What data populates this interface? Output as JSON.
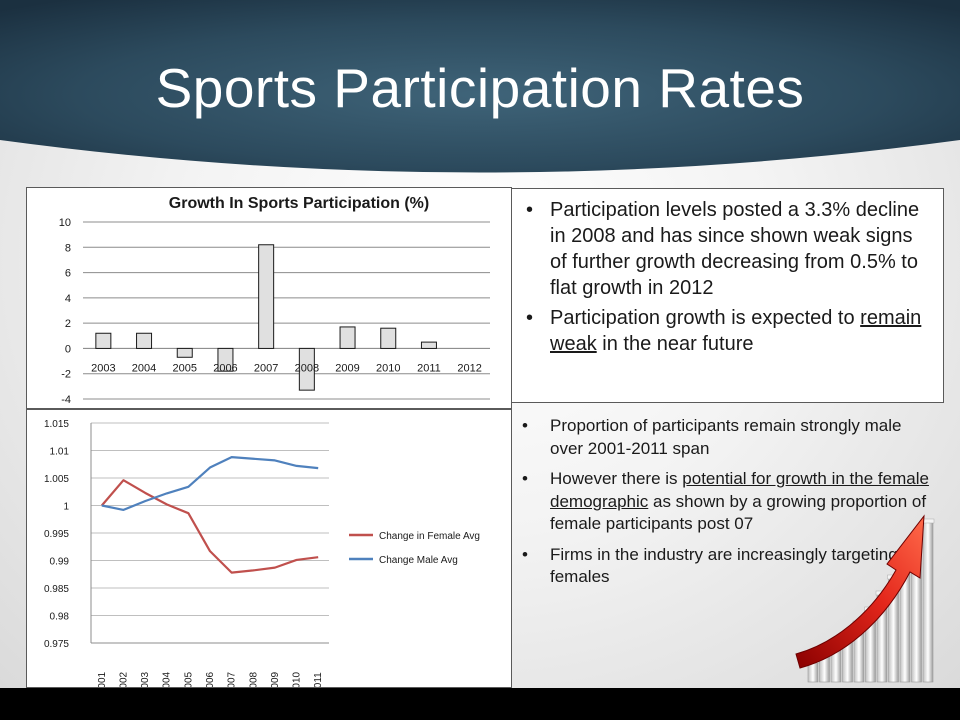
{
  "slide": {
    "title": "Sports Participation Rates",
    "colors": {
      "header_dark": "#1f3a4c",
      "header_mid": "#35596d",
      "female": "#c0504d",
      "male": "#4f81bd",
      "bar_fill": "#e0e0e0"
    }
  },
  "bullets_top": [
    {
      "parts": [
        {
          "text": "Participation levels posted a 3.3% decline in 2008 and has since shown weak signs of further growth decreasing from 0.5% to flat growth in 2012"
        }
      ]
    },
    {
      "parts": [
        {
          "text": "Participation  growth is expected to "
        },
        {
          "text": "remain weak",
          "underline": true
        },
        {
          "text": " in the near future"
        }
      ]
    }
  ],
  "bullets_bottom": [
    {
      "parts": [
        {
          "text": "Proportion of participants remain strongly male over 2001-2011 span"
        }
      ]
    },
    {
      "parts": [
        {
          "text": "However there is "
        },
        {
          "text": "potential for growth in the female demographic",
          "underline": true
        },
        {
          "text": " as shown by a growing proportion of female participants post 07"
        }
      ]
    },
    {
      "parts": [
        {
          "text": "Firms in the industry are increasingly targeting females"
        }
      ]
    }
  ],
  "decoration": {
    "icon": "growth-arrow-icon"
  },
  "chart_data": [
    {
      "type": "bar",
      "title": "Growth In Sports Participation  (%)",
      "categories": [
        "2003",
        "2004",
        "2005",
        "2006",
        "2007",
        "2008",
        "2009",
        "2010",
        "2011",
        "2012"
      ],
      "values": [
        1.2,
        1.2,
        -0.7,
        -1.8,
        8.2,
        -3.3,
        1.7,
        1.6,
        0.5,
        0
      ],
      "ylim": [
        -4,
        10
      ],
      "yticks": [
        "10",
        "8",
        "6",
        "4",
        "2",
        "0",
        "-2",
        "-4"
      ],
      "grid": true,
      "legend": "none"
    },
    {
      "type": "line",
      "categories": [
        "2001",
        "2002",
        "2003",
        "2004",
        "2005",
        "2006",
        "2007",
        "2008",
        "2009",
        "2010",
        "2011"
      ],
      "series": [
        {
          "name": "Change in Female Avg",
          "color": "#c0504d",
          "values": [
            1.0,
            1.0046,
            1.0023,
            1.0002,
            0.9986,
            0.9917,
            0.9878,
            0.9882,
            0.9887,
            0.9901,
            0.9906
          ]
        },
        {
          "name": "Change Male Avg",
          "color": "#4f81bd",
          "values": [
            1.0,
            0.9992,
            1.0008,
            1.0022,
            1.0034,
            1.0069,
            1.0088,
            1.0085,
            1.0082,
            1.0072,
            1.0068
          ]
        }
      ],
      "ylim": [
        0.975,
        1.015
      ],
      "yticks": [
        "1.015",
        "1.01",
        "1.005",
        "1",
        "0.995",
        "0.99",
        "0.985",
        "0.98",
        "0.975"
      ],
      "grid": true,
      "legend": "right"
    }
  ]
}
